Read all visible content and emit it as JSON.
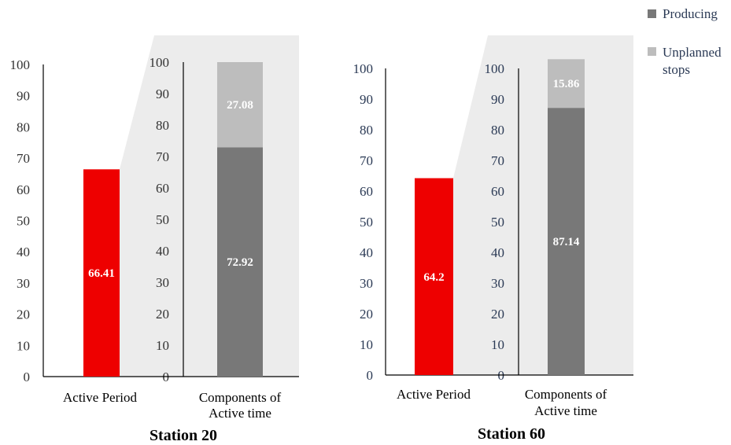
{
  "legend": {
    "producing": "Producing",
    "unplanned_line1": "Unplanned",
    "unplanned_line2": "stops"
  },
  "colors": {
    "active": "#ee0000",
    "producing": "#787878",
    "unplanned": "#bdbdbd",
    "zoom": "#ececec"
  },
  "chart_data": [
    {
      "type": "bar",
      "title": "Station 20",
      "ylim": [
        0,
        100
      ],
      "yticks": [
        0,
        10,
        20,
        30,
        40,
        50,
        60,
        70,
        80,
        90,
        100
      ],
      "active": {
        "category": "Active Period",
        "value": 66.41,
        "label": "66.41"
      },
      "components": {
        "category_line1": "Components of",
        "category_line2": "Active time",
        "series": [
          {
            "name": "Producing",
            "value": 72.92,
            "label": "72.92"
          },
          {
            "name": "Unplanned stops",
            "value": 27.08,
            "label": "27.08"
          }
        ]
      }
    },
    {
      "type": "bar",
      "title": "Station 60",
      "ylim": [
        0,
        100
      ],
      "yticks": [
        0,
        10,
        20,
        30,
        40,
        50,
        60,
        70,
        80,
        90,
        100
      ],
      "active": {
        "category": "Active Period",
        "value": 64.2,
        "label": "64.2"
      },
      "components": {
        "category_line1": "Components of",
        "category_line2": "Active time",
        "series": [
          {
            "name": "Producing",
            "value": 87.14,
            "label": "87.14"
          },
          {
            "name": "Unplanned stops",
            "value": 15.86,
            "label": "15.86"
          }
        ]
      }
    }
  ]
}
